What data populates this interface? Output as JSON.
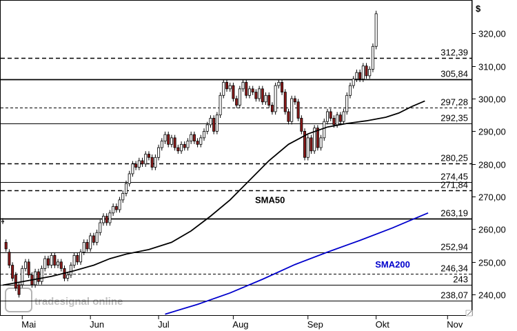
{
  "chart_data": {
    "type": "candlestick",
    "currency_label": "$",
    "y_ticks": [
      "320,00",
      "310,00",
      "300,00",
      "290,00",
      "280,00",
      "270,00",
      "260,00",
      "250,00",
      "240,00"
    ],
    "y_tick_values": [
      320,
      310,
      300,
      290,
      280,
      270,
      260,
      250,
      240
    ],
    "ylim": [
      233.5,
      330.2
    ],
    "x_labels": [
      "Mai",
      "Jun",
      "Jul",
      "Aug",
      "Sep",
      "Okt",
      "Nov"
    ],
    "x_label_sessions": [
      6,
      27,
      48,
      71,
      94,
      115,
      137
    ],
    "session_count": 141,
    "levels": [
      {
        "value": 312.39,
        "label": "312,39",
        "style": "dashed"
      },
      {
        "value": 305.84,
        "label": "305,84",
        "style": "solid"
      },
      {
        "value": 297.28,
        "label": "297,28",
        "style": "dashed-fine"
      },
      {
        "value": 292.35,
        "label": "292,35",
        "style": "solid"
      },
      {
        "value": 280.25,
        "label": "280,25",
        "style": "dashed"
      },
      {
        "value": 274.45,
        "label": "274,45",
        "style": "solid"
      },
      {
        "value": 271.84,
        "label": "271,84",
        "style": "dashed"
      },
      {
        "value": 263.19,
        "label": "263,19",
        "style": "solid"
      },
      {
        "value": 252.94,
        "label": "252,94",
        "style": "solid"
      },
      {
        "value": 246.34,
        "label": "246,34",
        "style": "dashed-fine"
      },
      {
        "value": 243,
        "label": "243",
        "style": "solid"
      },
      {
        "value": 238.07,
        "label": "238,07",
        "style": "solid"
      }
    ],
    "series": [
      {
        "name": "SMA50",
        "color": "#000000",
        "points": [
          [
            0,
            242.9
          ],
          [
            8,
            244.3
          ],
          [
            15,
            245.6
          ],
          [
            22,
            247.3
          ],
          [
            28,
            249.0
          ],
          [
            33,
            251.0
          ],
          [
            38,
            252.4
          ],
          [
            45,
            253.8
          ],
          [
            52,
            256.0
          ],
          [
            58,
            259.5
          ],
          [
            64,
            264.0
          ],
          [
            70,
            269.0
          ],
          [
            76,
            275.0
          ],
          [
            82,
            281.0
          ],
          [
            88,
            286.0
          ],
          [
            94,
            289.2
          ],
          [
            100,
            291.3
          ],
          [
            106,
            292.4
          ],
          [
            112,
            293.2
          ],
          [
            118,
            294.3
          ],
          [
            122,
            295.6
          ],
          [
            126,
            297.6
          ],
          [
            130,
            299.3
          ]
        ]
      },
      {
        "name": "SMA200",
        "color": "#0000cc",
        "points": [
          [
            50,
            234.0
          ],
          [
            60,
            237.0
          ],
          [
            70,
            240.5
          ],
          [
            80,
            244.7
          ],
          [
            90,
            249.2
          ],
          [
            100,
            253.0
          ],
          [
            110,
            256.6
          ],
          [
            120,
            260.4
          ],
          [
            125,
            262.5
          ],
          [
            131,
            265.0
          ]
        ]
      }
    ],
    "annotations": [
      {
        "text": "SMA50",
        "series": "SMA50",
        "at": [
          77.7,
          268.0
        ]
      },
      {
        "text": "SMA200",
        "series": "SMA200",
        "at": [
          114.7,
          248.3
        ]
      }
    ],
    "candles": [
      [
        262.5,
        262.5
      ],
      [
        256,
        254
      ],
      [
        253,
        249
      ],
      [
        249,
        245
      ],
      [
        246,
        242
      ],
      [
        243,
        240
      ],
      [
        243,
        248
      ],
      [
        248,
        250
      ],
      [
        250,
        246
      ],
      [
        246,
        243
      ],
      [
        243,
        247
      ],
      [
        247,
        244
      ],
      [
        244,
        248
      ],
      [
        248,
        251
      ],
      [
        251,
        249
      ],
      [
        249,
        252
      ],
      [
        252,
        249
      ],
      [
        249,
        250
      ],
      [
        250,
        248
      ],
      [
        248,
        245
      ],
      [
        245,
        246
      ],
      [
        246,
        249
      ],
      [
        249,
        252
      ],
      [
        252,
        250
      ],
      [
        250,
        253
      ],
      [
        253,
        256
      ],
      [
        256,
        254
      ],
      [
        254,
        258
      ],
      [
        258,
        256
      ],
      [
        256,
        259
      ],
      [
        259,
        262
      ],
      [
        262,
        264
      ],
      [
        264,
        262
      ],
      [
        262,
        265
      ],
      [
        265,
        267
      ],
      [
        267,
        266
      ],
      [
        266,
        269
      ],
      [
        269,
        271
      ],
      [
        271,
        274
      ],
      [
        274,
        277
      ],
      [
        277,
        280
      ],
      [
        280,
        279
      ],
      [
        279,
        281
      ],
      [
        281,
        280
      ],
      [
        280,
        283
      ],
      [
        283,
        282
      ],
      [
        282,
        279
      ],
      [
        279,
        282
      ],
      [
        282,
        285
      ],
      [
        285,
        287
      ],
      [
        287,
        289
      ],
      [
        289,
        286
      ],
      [
        286,
        288
      ],
      [
        288,
        285
      ],
      [
        285,
        284
      ],
      [
        284,
        286
      ],
      [
        286,
        285
      ],
      [
        285,
        287
      ],
      [
        287,
        289
      ],
      [
        289,
        287
      ],
      [
        287,
        286
      ],
      [
        286,
        288
      ],
      [
        288,
        290
      ],
      [
        290,
        292
      ],
      [
        292,
        294
      ],
      [
        294,
        290
      ],
      [
        290,
        295
      ],
      [
        295,
        301
      ],
      [
        301,
        305
      ],
      [
        305,
        303
      ],
      [
        303,
        304
      ],
      [
        304,
        300
      ],
      [
        300,
        298
      ],
      [
        298,
        303
      ],
      [
        303,
        305
      ],
      [
        305,
        301
      ],
      [
        301,
        303
      ],
      [
        303,
        302
      ],
      [
        302,
        300
      ],
      [
        300,
        303
      ],
      [
        303,
        299
      ],
      [
        299,
        301
      ],
      [
        301,
        298
      ],
      [
        298,
        296
      ],
      [
        296,
        304
      ],
      [
        304,
        305
      ],
      [
        305,
        302
      ],
      [
        302,
        296
      ],
      [
        296,
        293
      ],
      [
        293,
        300
      ],
      [
        300,
        299
      ],
      [
        299,
        294
      ],
      [
        294,
        290
      ],
      [
        290,
        282
      ],
      [
        282,
        288
      ],
      [
        288,
        284
      ],
      [
        284,
        291
      ],
      [
        291,
        285
      ],
      [
        285,
        288
      ],
      [
        288,
        293
      ],
      [
        293,
        296
      ],
      [
        296,
        294
      ],
      [
        294,
        292
      ],
      [
        292,
        295
      ],
      [
        295,
        293
      ],
      [
        293,
        296
      ],
      [
        296,
        301
      ],
      [
        301,
        304
      ],
      [
        304,
        306
      ],
      [
        306,
        308
      ],
      [
        308,
        306
      ],
      [
        306,
        310
      ],
      [
        310,
        307
      ],
      [
        307,
        309
      ],
      [
        309,
        316
      ],
      [
        316,
        326
      ]
    ],
    "candle_start_session": 0,
    "candle_gap_after": [],
    "watermark": "tradesignal online"
  }
}
